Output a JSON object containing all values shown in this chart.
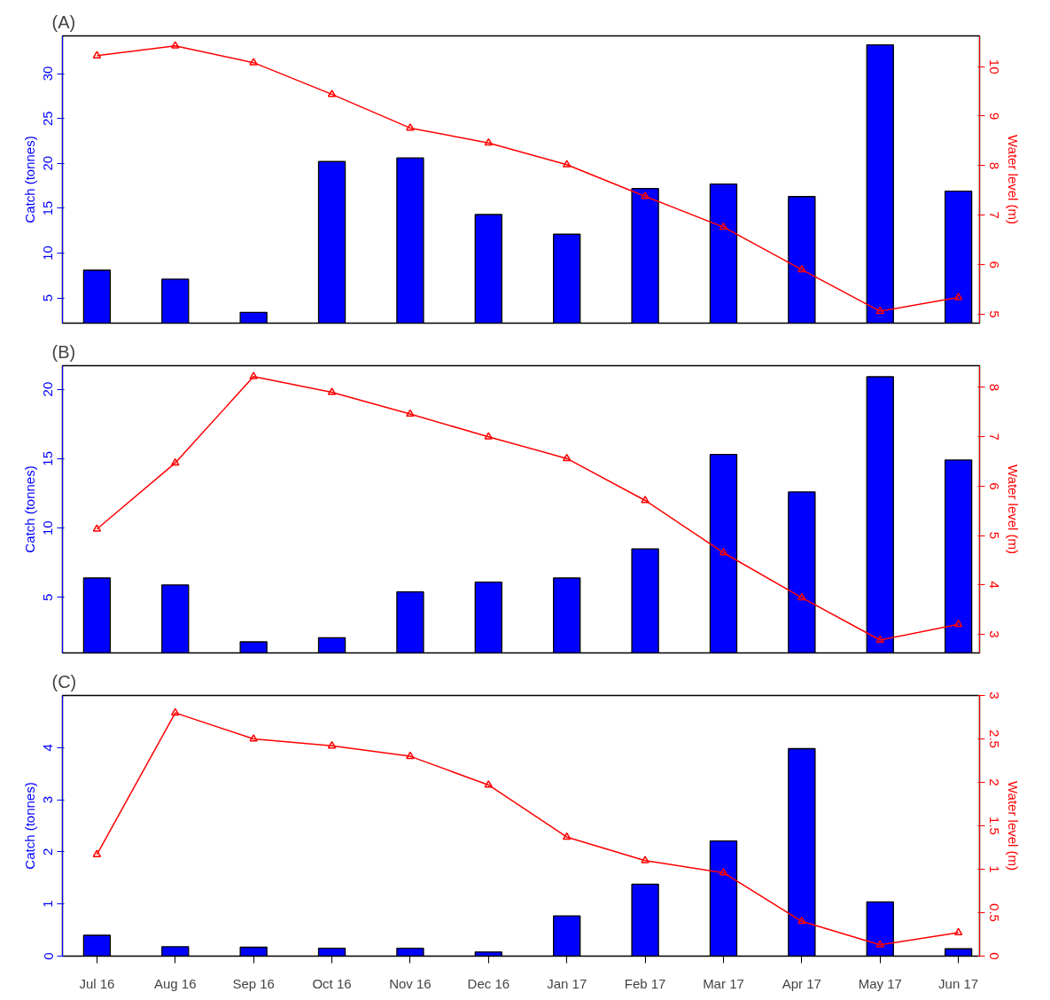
{
  "chart_data": [
    {
      "type": "bar",
      "title": "(A)",
      "ylabel": "Catch (tonnes)",
      "y2label": "Water level (m)",
      "categories": [
        null,
        null,
        null,
        null,
        null,
        null,
        null,
        null,
        null,
        null,
        null,
        null
      ],
      "series": [
        {
          "color": "#0000ff",
          "values": [
            8.1,
            7.1,
            3.4,
            20.2,
            20.6,
            14.3,
            12.1,
            17.2,
            17.7,
            16.3,
            33.2,
            16.9
          ]
        },
        {
          "type": "line",
          "axis": "y2",
          "color": "#ff0000",
          "marker": "triangle",
          "line_style": "solid",
          "values": [
            10.22,
            10.42,
            10.08,
            9.44,
            8.76,
            8.46,
            8.02,
            7.38,
            6.76,
            5.9,
            5.06,
            5.34
          ]
        }
      ],
      "ylim": [
        2.2,
        34.2
      ],
      "yticks": [
        5,
        10,
        15,
        20,
        25,
        30
      ],
      "y2lim": [
        4.82,
        10.62
      ],
      "y2ticks": [
        5,
        6,
        7,
        8,
        9,
        10
      ],
      "tick_labels": "y",
      "grid": false
    },
    {
      "type": "bar",
      "title": "(B)",
      "ylabel": "Catch (tonnes)",
      "y2label": "Water level (m)",
      "categories": [
        null,
        null,
        null,
        null,
        null,
        null,
        null,
        null,
        null,
        null,
        null,
        null
      ],
      "series": [
        {
          "color": "#0000ff",
          "values": [
            6.4,
            5.9,
            1.8,
            2.1,
            5.4,
            6.1,
            6.4,
            8.5,
            15.3,
            12.6,
            20.9,
            14.9
          ]
        },
        {
          "type": "line",
          "axis": "y2",
          "color": "#ff0000",
          "marker": "triangle",
          "line_style": "solid",
          "values": [
            5.13,
            6.47,
            8.22,
            7.9,
            7.46,
            7.0,
            6.56,
            5.71,
            4.65,
            3.74,
            2.88,
            3.2
          ]
        }
      ],
      "ylim": [
        1.0,
        21.7
      ],
      "yticks": [
        5,
        10,
        15,
        20
      ],
      "y2lim": [
        2.62,
        8.44
      ],
      "y2ticks": [
        3,
        4,
        5,
        6,
        7,
        8
      ],
      "tick_labels": "y",
      "grid": false
    },
    {
      "type": "bar",
      "title": "(C)",
      "ylabel": "Catch (tonnes)",
      "y2label": "Water level (m)",
      "categories": [
        "Jul 16",
        "Aug 16",
        "Sep 16",
        "Oct 16",
        "Nov 16",
        "Dec 16",
        "Jan 17",
        "Feb 17",
        "Mar 17",
        "Apr 17",
        "May 17",
        "Jun 17"
      ],
      "series": [
        {
          "color": "#0000ff",
          "values": [
            0.4,
            0.18,
            0.17,
            0.15,
            0.15,
            0.08,
            0.77,
            1.38,
            2.21,
            3.98,
            1.04,
            0.14
          ]
        },
        {
          "type": "line",
          "axis": "y2",
          "color": "#ff0000",
          "marker": "triangle",
          "line_style": "solid",
          "values": [
            1.17,
            2.8,
            2.5,
            2.42,
            2.3,
            1.97,
            1.37,
            1.1,
            0.96,
            0.4,
            0.13,
            0.27
          ]
        }
      ],
      "ylim": [
        0,
        5.0
      ],
      "yticks": [
        0,
        1,
        2,
        3,
        4
      ],
      "y2lim": [
        0,
        3
      ],
      "y2ticks": [
        0,
        0.5,
        1,
        1.5,
        2,
        2.5,
        3
      ],
      "grid": false
    }
  ]
}
